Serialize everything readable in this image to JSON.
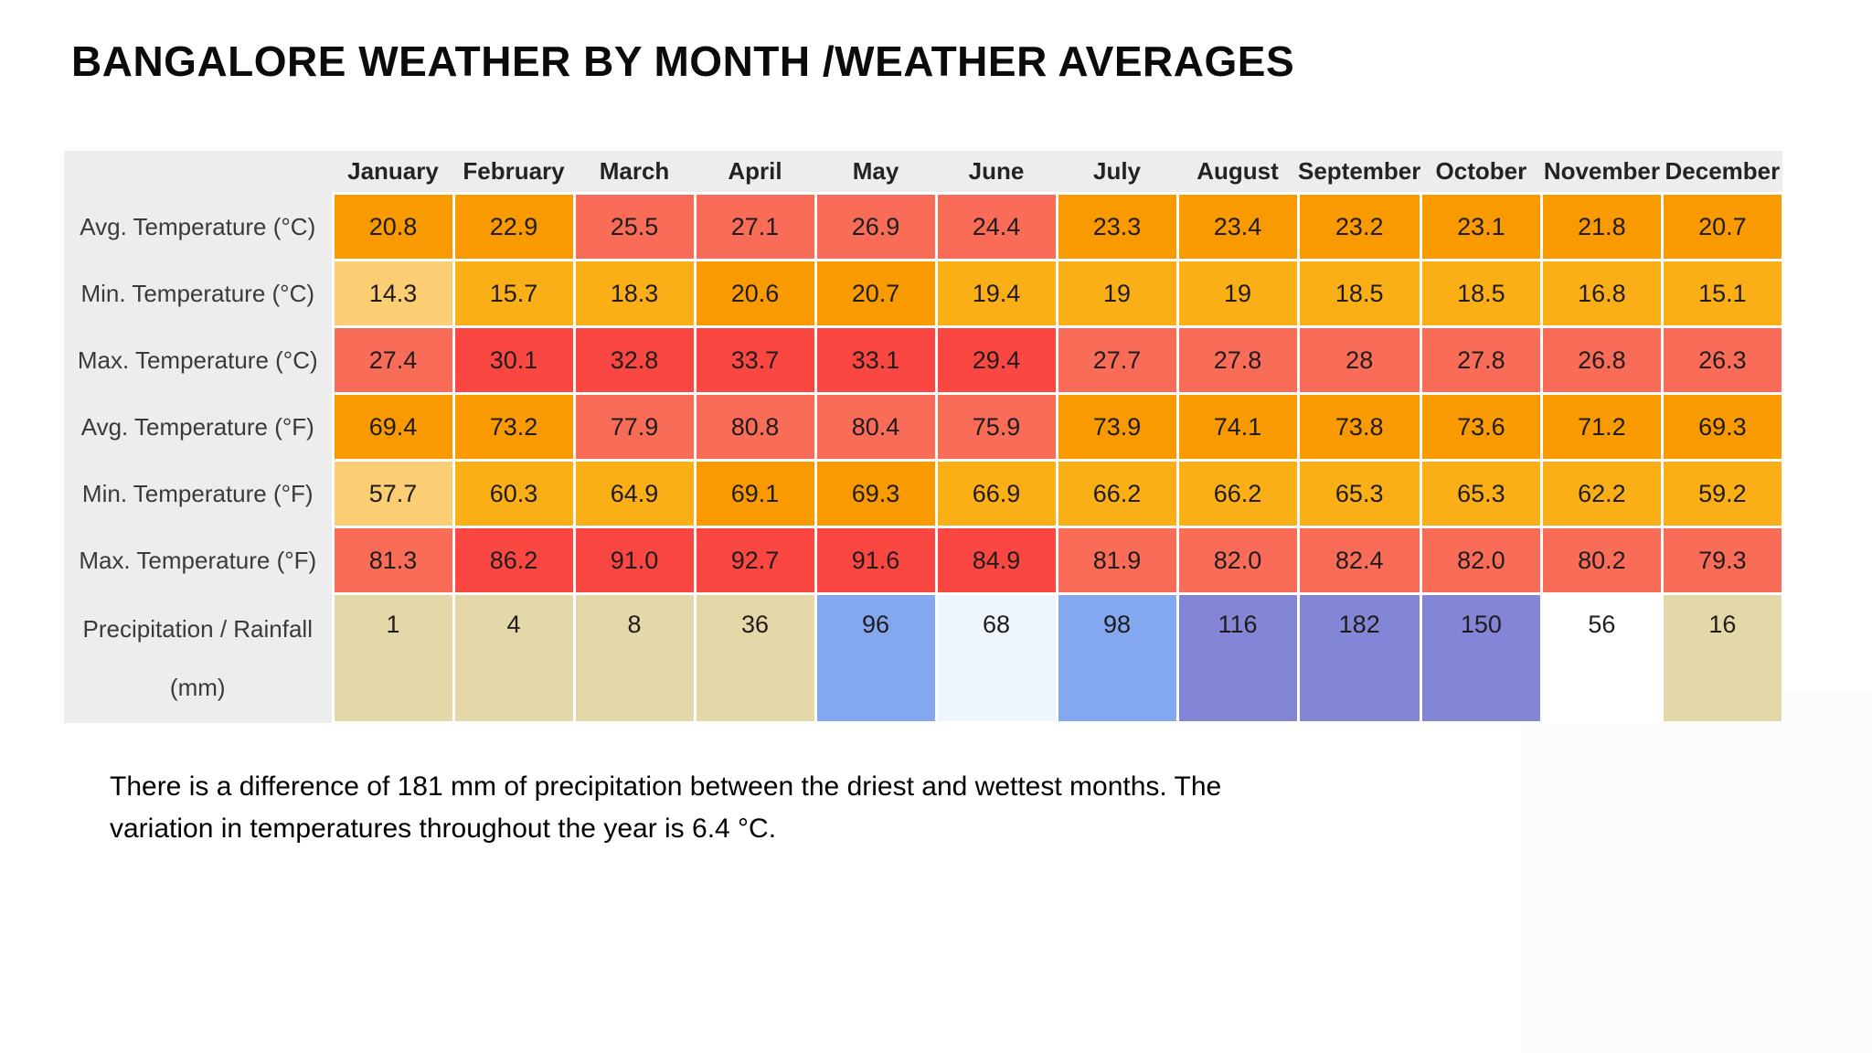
{
  "title": "BANGALORE WEATHER BY MONTH /WEATHER AVERAGES",
  "palette": {
    "pale": "#fcce73",
    "amber": "#fbaf16",
    "orange": "#f99b00",
    "tomato": "#f96d58",
    "red": "#fa4742",
    "tan": "#e5d8a8",
    "blue": "#83a8ef",
    "lightblue": "#eef5fc",
    "periwinkle": "#8386d6",
    "white": "#ffffff",
    "header_bg": "#ededed"
  },
  "table": {
    "months": [
      "January",
      "February",
      "March",
      "April",
      "May",
      "June",
      "July",
      "August",
      "September",
      "October",
      "November",
      "December"
    ],
    "rows": [
      {
        "label": "Avg. Temperature (°C)",
        "values": [
          "20.8",
          "22.9",
          "25.5",
          "27.1",
          "26.9",
          "24.4",
          "23.3",
          "23.4",
          "23.2",
          "23.1",
          "21.8",
          "20.7"
        ],
        "colors": [
          "orange",
          "orange",
          "tomato",
          "tomato",
          "tomato",
          "tomato",
          "orange",
          "orange",
          "orange",
          "orange",
          "orange",
          "orange"
        ]
      },
      {
        "label": "Min. Temperature (°C)",
        "values": [
          "14.3",
          "15.7",
          "18.3",
          "20.6",
          "20.7",
          "19.4",
          "19",
          "19",
          "18.5",
          "18.5",
          "16.8",
          "15.1"
        ],
        "colors": [
          "pale",
          "amber",
          "amber",
          "orange",
          "orange",
          "amber",
          "amber",
          "amber",
          "amber",
          "amber",
          "amber",
          "amber"
        ]
      },
      {
        "label": "Max. Temperature (°C)",
        "values": [
          "27.4",
          "30.1",
          "32.8",
          "33.7",
          "33.1",
          "29.4",
          "27.7",
          "27.8",
          "28",
          "27.8",
          "26.8",
          "26.3"
        ],
        "colors": [
          "tomato",
          "red",
          "red",
          "red",
          "red",
          "red",
          "tomato",
          "tomato",
          "tomato",
          "tomato",
          "tomato",
          "tomato"
        ]
      },
      {
        "label": "Avg. Temperature (°F)",
        "values": [
          "69.4",
          "73.2",
          "77.9",
          "80.8",
          "80.4",
          "75.9",
          "73.9",
          "74.1",
          "73.8",
          "73.6",
          "71.2",
          "69.3"
        ],
        "colors": [
          "orange",
          "orange",
          "tomato",
          "tomato",
          "tomato",
          "tomato",
          "orange",
          "orange",
          "orange",
          "orange",
          "orange",
          "orange"
        ]
      },
      {
        "label": "Min. Temperature (°F)",
        "values": [
          "57.7",
          "60.3",
          "64.9",
          "69.1",
          "69.3",
          "66.9",
          "66.2",
          "66.2",
          "65.3",
          "65.3",
          "62.2",
          "59.2"
        ],
        "colors": [
          "pale",
          "amber",
          "amber",
          "orange",
          "orange",
          "amber",
          "amber",
          "amber",
          "amber",
          "amber",
          "amber",
          "amber"
        ]
      },
      {
        "label": "Max. Temperature (°F)",
        "values": [
          "81.3",
          "86.2",
          "91.0",
          "92.7",
          "91.6",
          "84.9",
          "81.9",
          "82.0",
          "82.4",
          "82.0",
          "80.2",
          "79.3"
        ],
        "colors": [
          "tomato",
          "red",
          "red",
          "red",
          "red",
          "red",
          "tomato",
          "tomato",
          "tomato",
          "tomato",
          "tomato",
          "tomato"
        ]
      },
      {
        "label": "Precipitation / Rainfall",
        "label2": "(mm)",
        "values": [
          "1",
          "4",
          "8",
          "36",
          "96",
          "68",
          "98",
          "116",
          "182",
          "150",
          "56",
          "16"
        ],
        "colors": [
          "tan",
          "tan",
          "tan",
          "tan",
          "blue",
          "lightblue",
          "blue",
          "periwinkle",
          "periwinkle",
          "periwinkle",
          "white",
          "tan"
        ]
      }
    ]
  },
  "note": {
    "line1": "There is a difference of 181 mm of precipitation between the driest and wettest months. The",
    "line2": "variation in temperatures throughout the year is 6.4 °C."
  },
  "chart_data": {
    "type": "table",
    "title": "BANGALORE WEATHER BY MONTH /WEATHER AVERAGES",
    "categories": [
      "January",
      "February",
      "March",
      "April",
      "May",
      "June",
      "July",
      "August",
      "September",
      "October",
      "November",
      "December"
    ],
    "series": [
      {
        "name": "Avg. Temperature (°C)",
        "values": [
          20.8,
          22.9,
          25.5,
          27.1,
          26.9,
          24.4,
          23.3,
          23.4,
          23.2,
          23.1,
          21.8,
          20.7
        ]
      },
      {
        "name": "Min. Temperature (°C)",
        "values": [
          14.3,
          15.7,
          18.3,
          20.6,
          20.7,
          19.4,
          19,
          19,
          18.5,
          18.5,
          16.8,
          15.1
        ]
      },
      {
        "name": "Max. Temperature (°C)",
        "values": [
          27.4,
          30.1,
          32.8,
          33.7,
          33.1,
          29.4,
          27.7,
          27.8,
          28,
          27.8,
          26.8,
          26.3
        ]
      },
      {
        "name": "Avg. Temperature (°F)",
        "values": [
          69.4,
          73.2,
          77.9,
          80.8,
          80.4,
          75.9,
          73.9,
          74.1,
          73.8,
          73.6,
          71.2,
          69.3
        ]
      },
      {
        "name": "Min. Temperature (°F)",
        "values": [
          57.7,
          60.3,
          64.9,
          69.1,
          69.3,
          66.9,
          66.2,
          66.2,
          65.3,
          65.3,
          62.2,
          59.2
        ]
      },
      {
        "name": "Max. Temperature (°F)",
        "values": [
          81.3,
          86.2,
          91.0,
          92.7,
          91.6,
          84.9,
          81.9,
          82.0,
          82.4,
          82.0,
          80.2,
          79.3
        ]
      },
      {
        "name": "Precipitation / Rainfall (mm)",
        "values": [
          1,
          4,
          8,
          36,
          96,
          68,
          98,
          116,
          182,
          150,
          56,
          16
        ]
      }
    ]
  }
}
